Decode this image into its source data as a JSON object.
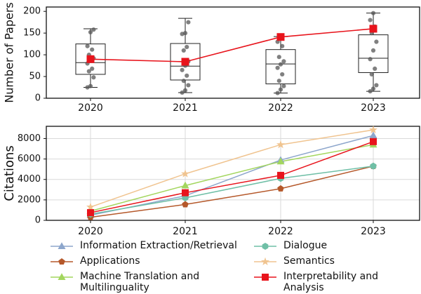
{
  "chart_data": [
    {
      "type": "box",
      "ylabel": "Number of Papers",
      "xlabel": "",
      "categories": [
        "2020",
        "2021",
        "2022",
        "2023"
      ],
      "ylim": [
        0,
        210
      ],
      "yticks": [
        0,
        50,
        100,
        150,
        200
      ],
      "boxes": [
        {
          "whisker_low": 25,
          "q1": 55,
          "median": 82,
          "q3": 125,
          "whisker_high": 160
        },
        {
          "whisker_low": 13,
          "q1": 42,
          "median": 74,
          "q3": 126,
          "whisker_high": 184
        },
        {
          "whisker_low": 12,
          "q1": 33,
          "median": 79,
          "q3": 112,
          "whisker_high": 142
        },
        {
          "whisker_low": 16,
          "q1": 59,
          "median": 92,
          "q3": 146,
          "whisker_high": 196
        }
      ],
      "points": [
        [
          25,
          28,
          48,
          62,
          68,
          80,
          88,
          92,
          100,
          112,
          120,
          152,
          158
        ],
        [
          13,
          18,
          30,
          40,
          52,
          65,
          75,
          85,
          110,
          118,
          148,
          150,
          175
        ],
        [
          12,
          20,
          28,
          40,
          55,
          70,
          78,
          85,
          95,
          120,
          130,
          138
        ],
        [
          16,
          22,
          30,
          55,
          68,
          90,
          110,
          130,
          150,
          165,
          180,
          196
        ]
      ],
      "mean_series": {
        "name": "Mean",
        "values": [
          90,
          84,
          141,
          160
        ],
        "color": "#e8141c"
      }
    },
    {
      "type": "line",
      "ylabel": "Citations",
      "xlabel": "",
      "x": [
        "2020",
        "2021",
        "2022",
        "2023"
      ],
      "ylim": [
        0,
        9200
      ],
      "yticks": [
        0,
        2000,
        4000,
        6000,
        8000
      ],
      "grid": true,
      "series": [
        {
          "name": "Information Extraction/Retrieval",
          "marker": "triangle-up",
          "color": "#8da6cc",
          "values": [
            500,
            2400,
            5900,
            8300
          ]
        },
        {
          "name": "Applications",
          "marker": "pentagon",
          "color": "#b5582a",
          "values": [
            300,
            1550,
            3100,
            5300
          ]
        },
        {
          "name": "Machine Translation and Multilinguality",
          "marker": "triangle-up",
          "color": "#a3d65e",
          "values": [
            900,
            3400,
            5750,
            7400
          ]
        },
        {
          "name": "Dialogue",
          "marker": "hexagon",
          "color": "#6fbfa6",
          "values": [
            600,
            2200,
            4100,
            5300
          ]
        },
        {
          "name": "Semantics",
          "marker": "star",
          "color": "#f0c490",
          "values": [
            1300,
            4550,
            7400,
            8850
          ]
        },
        {
          "name": "Interpretability and Analysis",
          "marker": "square",
          "color": "#e8141c",
          "values": [
            750,
            2700,
            4400,
            7700
          ]
        }
      ],
      "legend_position": "bottom"
    }
  ]
}
